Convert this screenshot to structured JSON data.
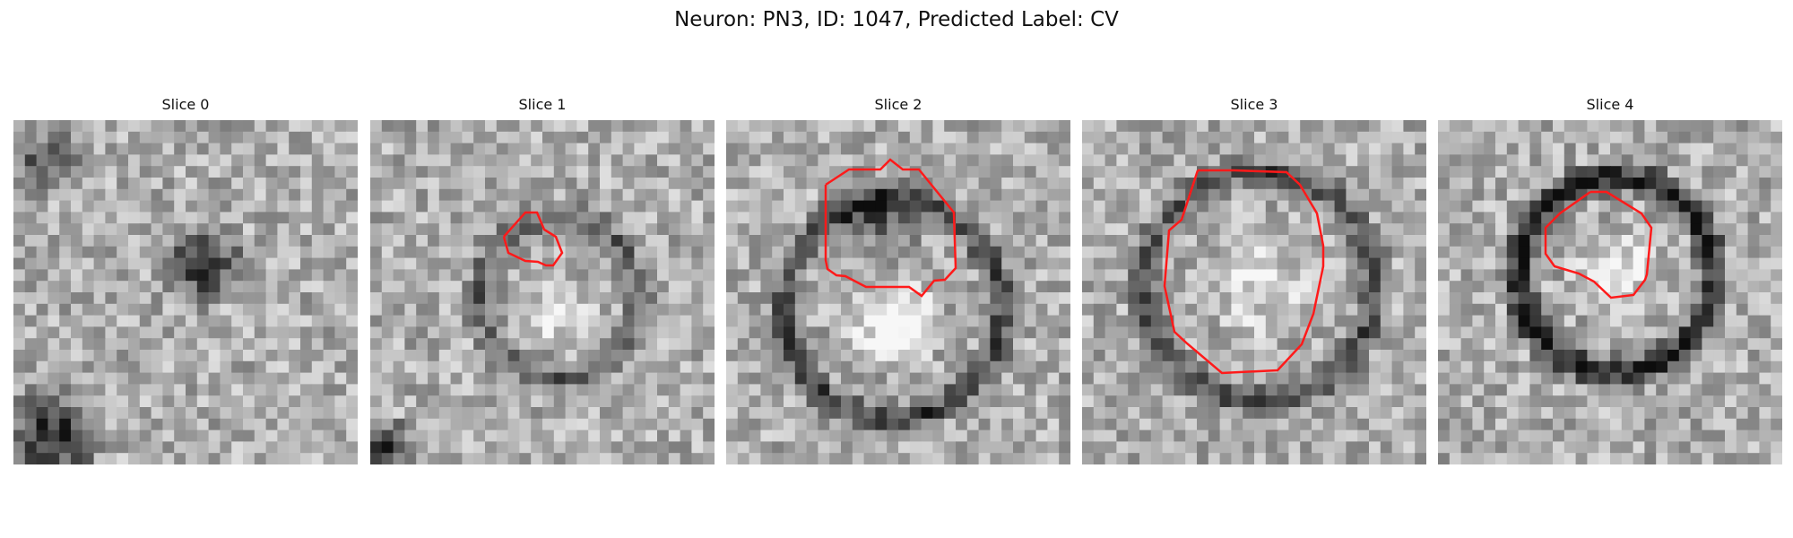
{
  "figure": {
    "title": "Neuron: PN3, ID: 1047, Predicted Label: CV",
    "overlay_color": "#ff1a1a"
  },
  "slices": [
    {
      "label": "Slice 0",
      "has_contour": false
    },
    {
      "label": "Slice 1",
      "has_contour": true
    },
    {
      "label": "Slice 2",
      "has_contour": true
    },
    {
      "label": "Slice 3",
      "has_contour": true
    },
    {
      "label": "Slice 4",
      "has_contour": true
    }
  ]
}
